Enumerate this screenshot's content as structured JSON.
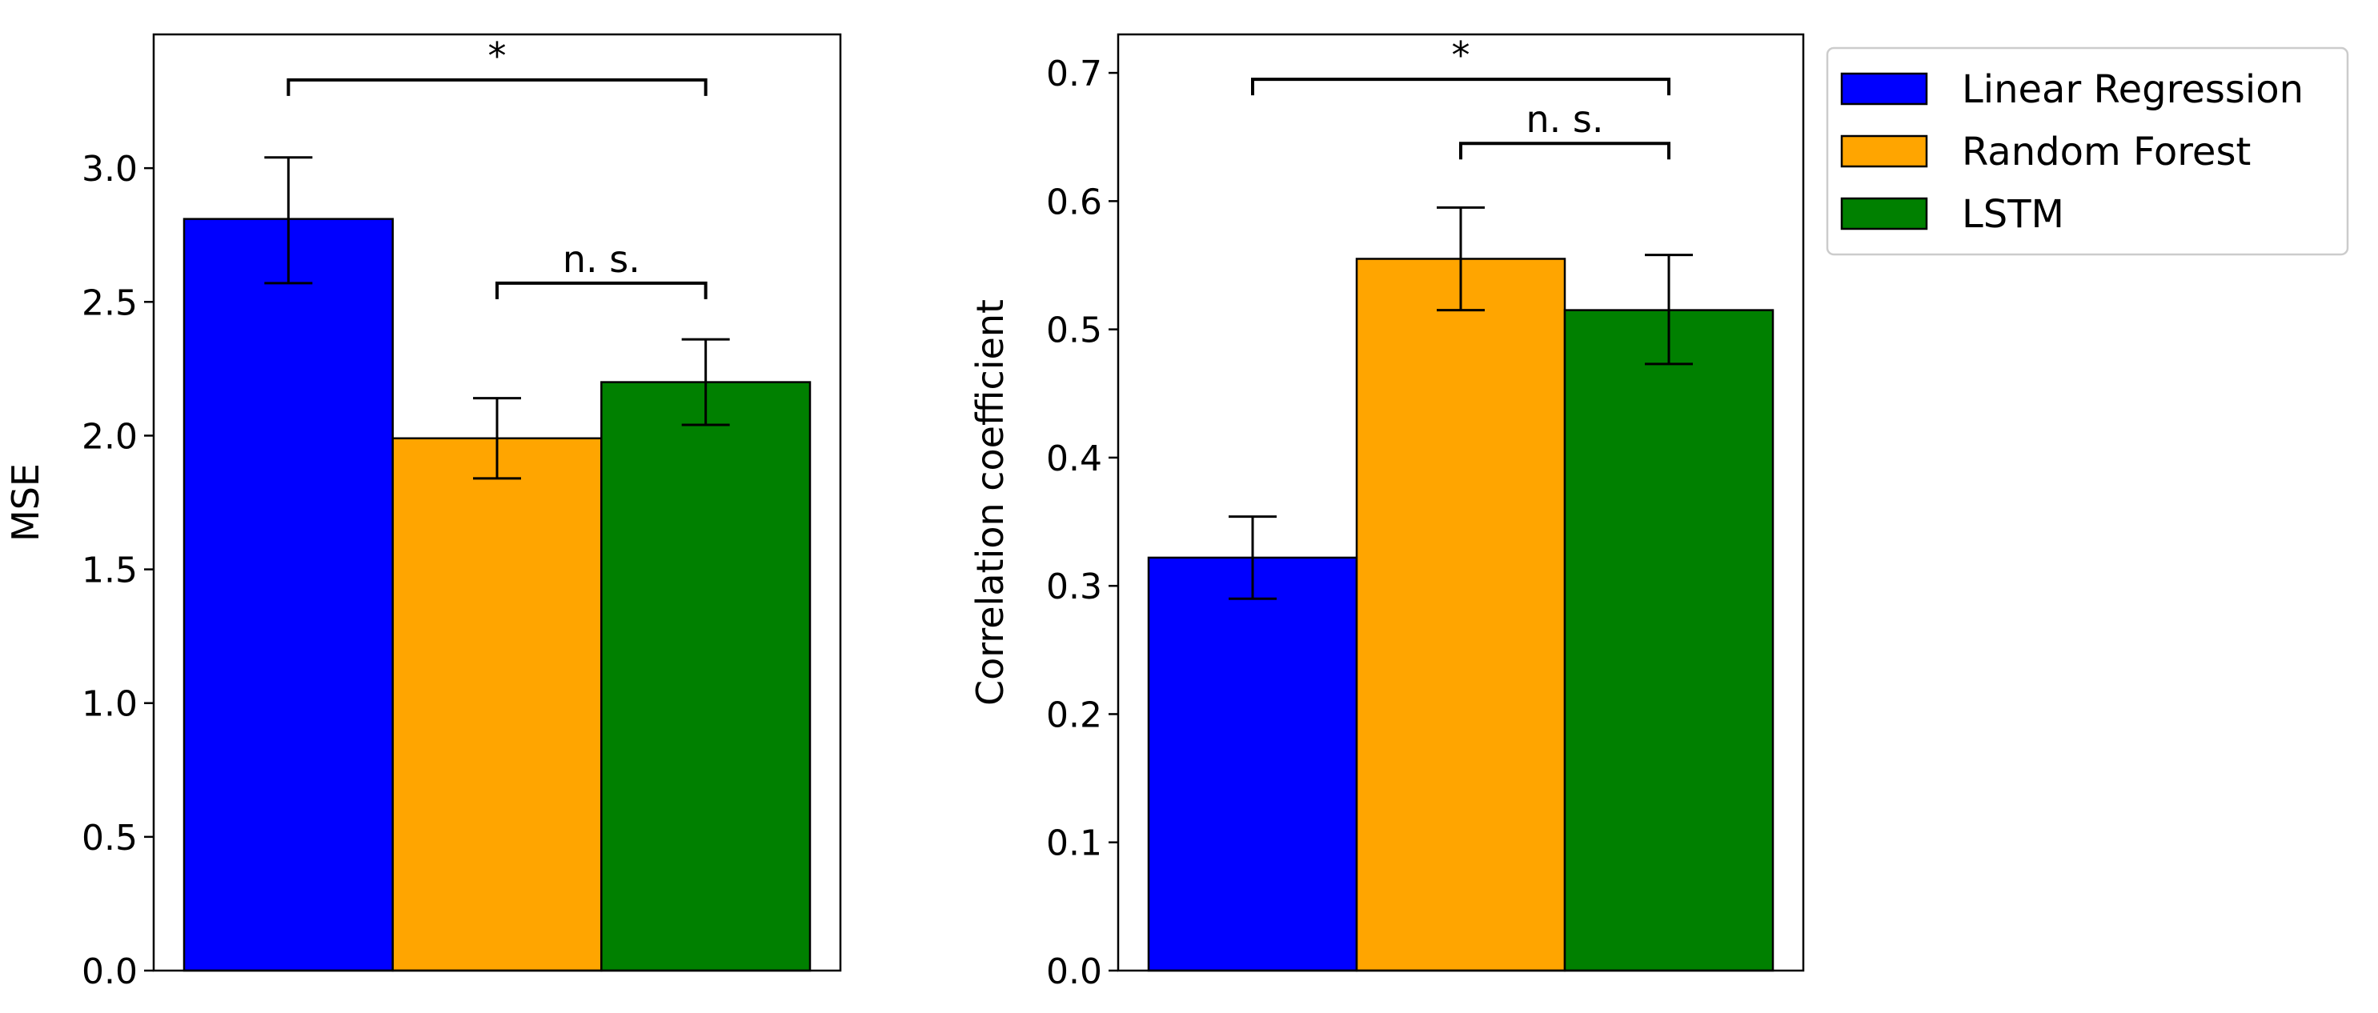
{
  "chart_data": {
    "type": "bar",
    "colors": {
      "Linear Regression": "#0000ff",
      "Random Forest": "#ffa500",
      "LSTM": "#008000"
    },
    "legend": {
      "placement": "upper-right-outside",
      "entries": [
        "Linear Regression",
        "Random Forest",
        "LSTM"
      ]
    },
    "panels": [
      {
        "id": "mse",
        "ylabel": "MSE",
        "ylim": [
          0,
          3.5
        ],
        "yticks": [
          0.0,
          0.5,
          1.0,
          1.5,
          2.0,
          2.5,
          3.0
        ],
        "ytick_labels": [
          "0.0",
          "0.5",
          "1.0",
          "1.5",
          "2.0",
          "2.5",
          "3.0"
        ],
        "series": [
          {
            "name": "Linear Regression",
            "value": 2.81,
            "err_low": 2.57,
            "err_high": 3.04
          },
          {
            "name": "Random Forest",
            "value": 1.99,
            "err_low": 1.84,
            "err_high": 2.14
          },
          {
            "name": "LSTM",
            "value": 2.2,
            "err_low": 2.04,
            "err_high": 2.36
          }
        ],
        "significance": [
          {
            "from": 0,
            "to": 2,
            "level": 3.33,
            "label": "*"
          },
          {
            "from": 1,
            "to": 2,
            "level": 2.57,
            "label": "n. s."
          }
        ]
      },
      {
        "id": "corr",
        "ylabel": "Correlation coefficient",
        "ylim": [
          0,
          0.73
        ],
        "yticks": [
          0.0,
          0.1,
          0.2,
          0.3,
          0.4,
          0.5,
          0.6,
          0.7
        ],
        "ytick_labels": [
          "0.0",
          "0.1",
          "0.2",
          "0.3",
          "0.4",
          "0.5",
          "0.6",
          "0.7"
        ],
        "series": [
          {
            "name": "Linear Regression",
            "value": 0.322,
            "err_low": 0.29,
            "err_high": 0.354
          },
          {
            "name": "Random Forest",
            "value": 0.555,
            "err_low": 0.515,
            "err_high": 0.595
          },
          {
            "name": "LSTM",
            "value": 0.515,
            "err_low": 0.473,
            "err_high": 0.558
          }
        ],
        "significance": [
          {
            "from": 0,
            "to": 2,
            "level": 0.695,
            "label": "*"
          },
          {
            "from": 1,
            "to": 2,
            "level": 0.645,
            "label": "n. s."
          }
        ]
      }
    ]
  }
}
